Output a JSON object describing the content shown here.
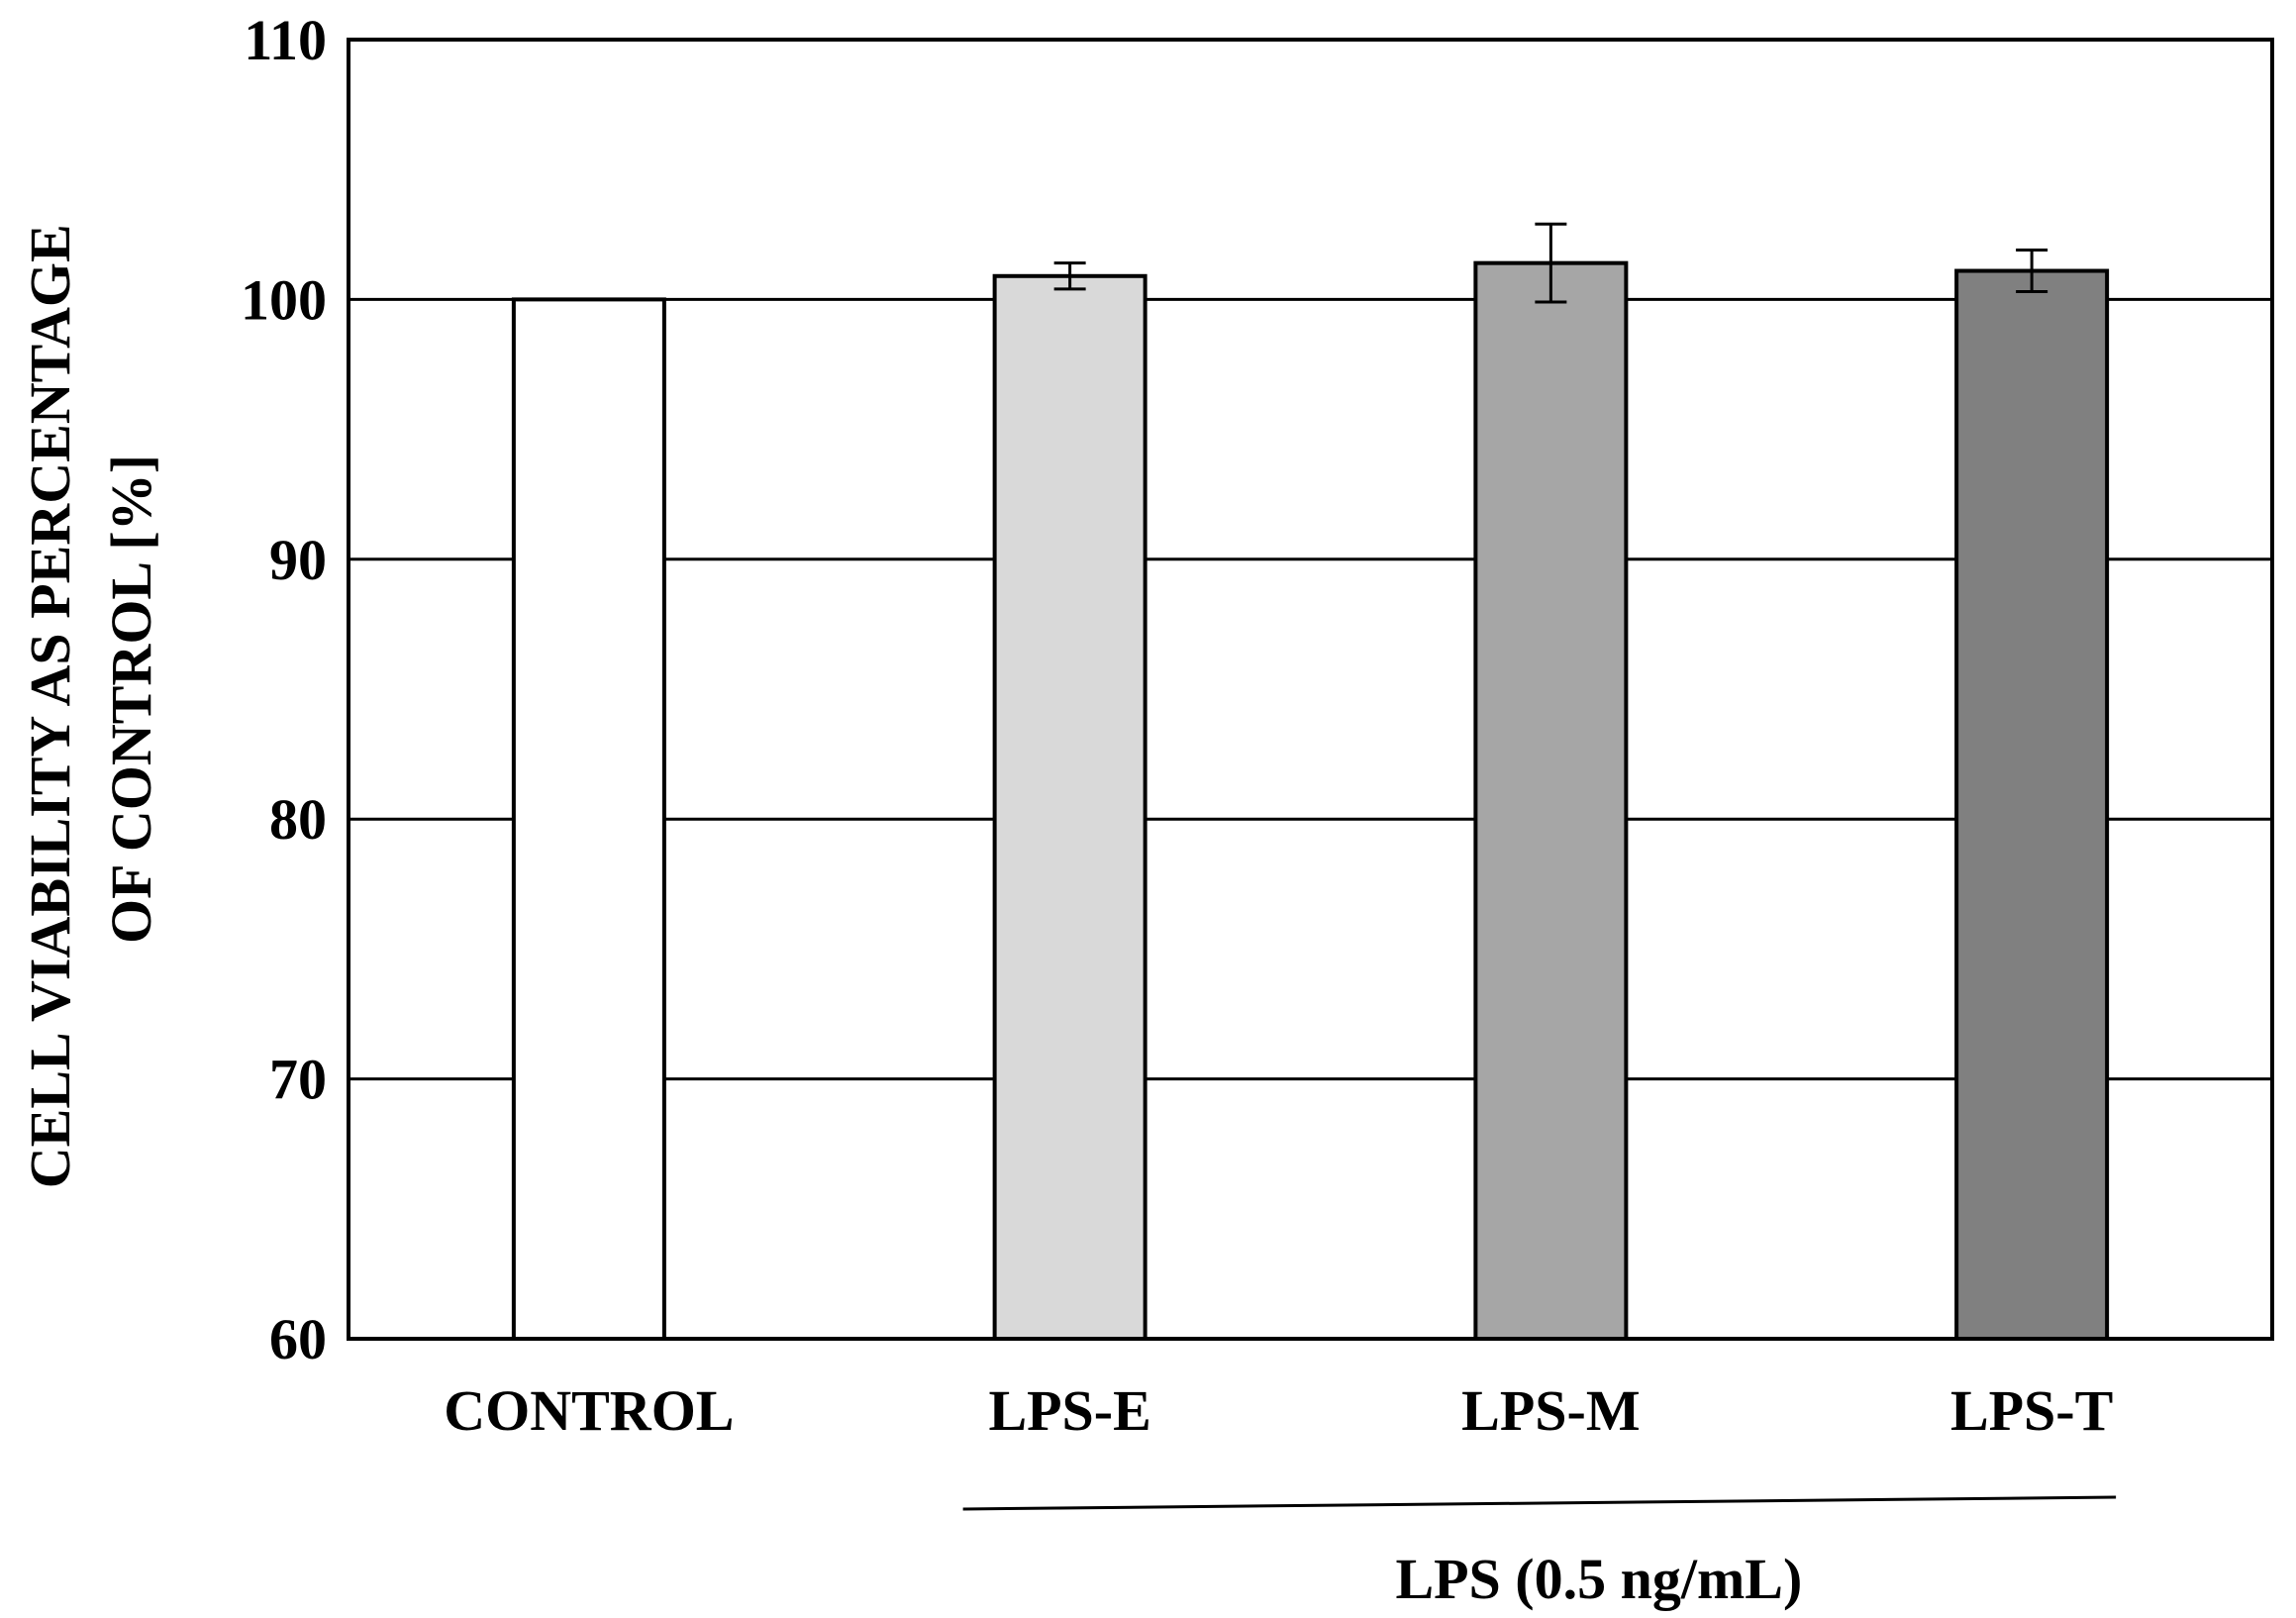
{
  "chart_data": {
    "type": "bar",
    "categories": [
      "CONTROL",
      "LPS-E",
      "LPS-M",
      "LPS-T"
    ],
    "values": [
      100,
      100.9,
      101.4,
      101.1
    ],
    "errors": [
      0,
      0.5,
      1.5,
      0.8
    ],
    "colors": [
      "#ffffff",
      "#d9d9d9",
      "#a6a6a6",
      "#808080"
    ],
    "ylabel_line1": "CELL VIABILITY AS PERCENTAGE",
    "ylabel_line2": "OF CONTROL [%]",
    "xlabel": "",
    "ylim": [
      60,
      110
    ],
    "yticks": [
      60,
      70,
      80,
      90,
      100,
      110
    ],
    "grid": true,
    "group_bracket": {
      "label": "LPS (0.5 ng/mL)",
      "categories": [
        "LPS-E",
        "LPS-M",
        "LPS-T"
      ]
    }
  }
}
